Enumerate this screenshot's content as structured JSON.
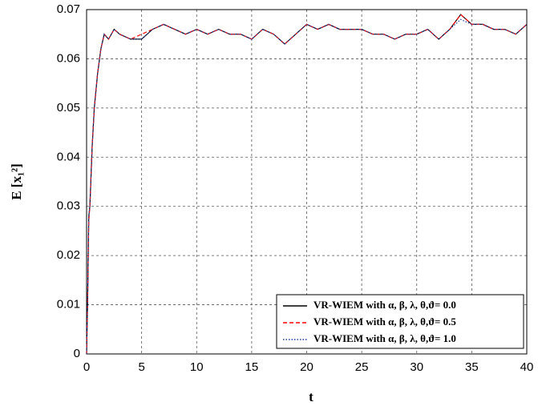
{
  "chart_data": {
    "type": "line",
    "xlabel": "t",
    "ylabel": "E [x₁²]",
    "x": [
      0,
      0.1,
      0.2,
      0.3,
      0.5,
      0.7,
      1,
      1.3,
      1.6,
      2,
      2.5,
      3,
      4,
      5,
      6,
      7,
      8,
      9,
      10,
      11,
      12,
      13,
      14,
      15,
      16,
      17,
      18,
      19,
      20,
      21,
      22,
      23,
      24,
      25,
      26,
      27,
      28,
      29,
      30,
      31,
      32,
      33,
      34,
      35,
      36,
      37,
      38,
      39,
      40
    ],
    "series": [
      {
        "name": "VR-WIEM with α, β, λ, θ,ϑ= 0.0",
        "color": "#000000",
        "dash": "solid",
        "values": [
          0,
          0.012,
          0.028,
          0.03,
          0.042,
          0.05,
          0.057,
          0.062,
          0.065,
          0.064,
          0.066,
          0.065,
          0.064,
          0.064,
          0.066,
          0.067,
          0.066,
          0.065,
          0.066,
          0.065,
          0.066,
          0.065,
          0.065,
          0.064,
          0.066,
          0.065,
          0.063,
          0.065,
          0.067,
          0.066,
          0.067,
          0.066,
          0.066,
          0.066,
          0.065,
          0.065,
          0.064,
          0.065,
          0.065,
          0.066,
          0.064,
          0.066,
          0.069,
          0.067,
          0.067,
          0.066,
          0.066,
          0.065,
          0.067
        ]
      },
      {
        "name": "VR-WIEM with α, β, λ, θ,ϑ= 0.5",
        "color": "#ff0000",
        "dash": "dashed",
        "values": [
          0,
          0.012,
          0.027,
          0.03,
          0.042,
          0.05,
          0.057,
          0.062,
          0.065,
          0.064,
          0.066,
          0.065,
          0.064,
          0.065,
          0.066,
          0.067,
          0.066,
          0.065,
          0.066,
          0.065,
          0.066,
          0.065,
          0.065,
          0.064,
          0.066,
          0.065,
          0.063,
          0.065,
          0.067,
          0.066,
          0.067,
          0.066,
          0.066,
          0.066,
          0.065,
          0.065,
          0.064,
          0.065,
          0.065,
          0.066,
          0.064,
          0.066,
          0.069,
          0.067,
          0.067,
          0.066,
          0.066,
          0.065,
          0.067
        ]
      },
      {
        "name": "VR-WIEM with α, β, λ, θ,ϑ= 1.0",
        "color": "#1f3f9f",
        "dash": "dotted",
        "values": [
          0,
          0.012,
          0.028,
          0.03,
          0.042,
          0.05,
          0.057,
          0.062,
          0.065,
          0.064,
          0.066,
          0.065,
          0.064,
          0.064,
          0.066,
          0.067,
          0.066,
          0.065,
          0.066,
          0.065,
          0.066,
          0.065,
          0.065,
          0.064,
          0.066,
          0.065,
          0.063,
          0.065,
          0.067,
          0.066,
          0.067,
          0.066,
          0.066,
          0.066,
          0.065,
          0.065,
          0.064,
          0.065,
          0.065,
          0.066,
          0.064,
          0.066,
          0.068,
          0.067,
          0.067,
          0.066,
          0.066,
          0.065,
          0.067
        ]
      }
    ],
    "xlim": [
      0,
      40
    ],
    "xticks": [
      0,
      5,
      10,
      15,
      20,
      25,
      30,
      35,
      40
    ],
    "ylim": [
      0,
      0.07
    ],
    "yticks": [
      0,
      0.01,
      0.02,
      0.03,
      0.04,
      0.05,
      0.06,
      0.07
    ],
    "grid": true,
    "legend": "lower right"
  }
}
